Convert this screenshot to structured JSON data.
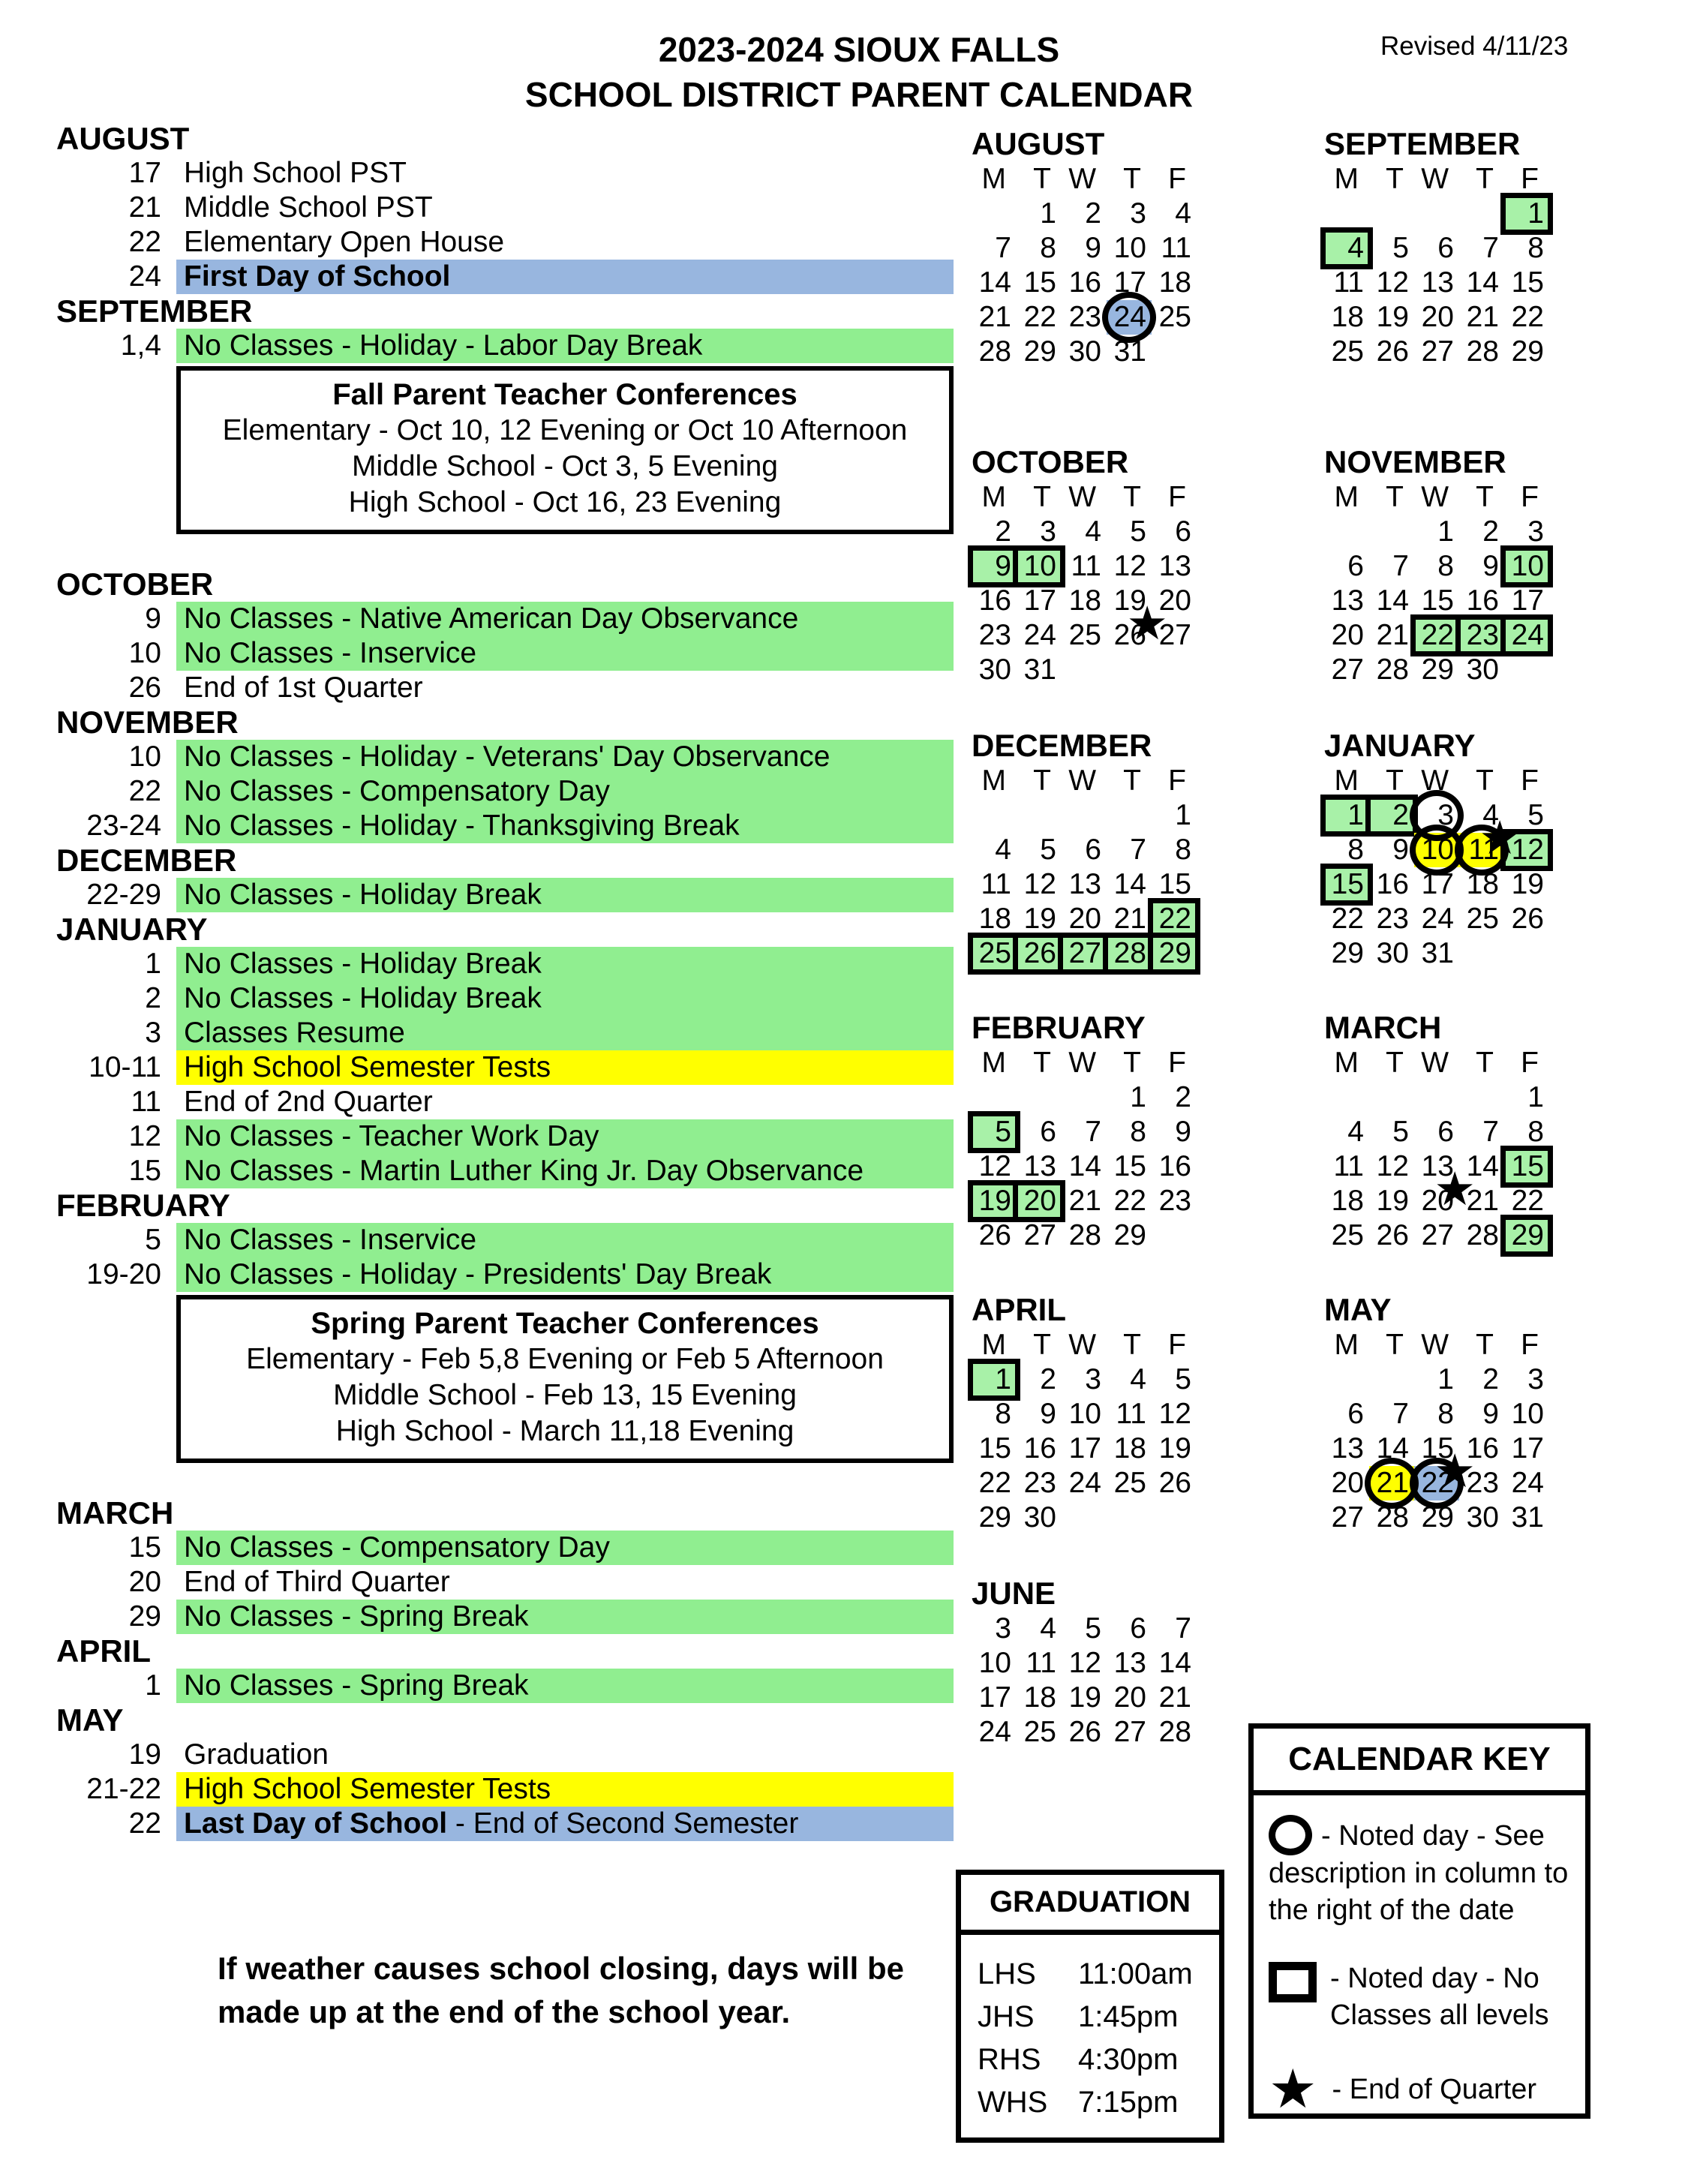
{
  "header": {
    "title_line1": "2023-2024 SIOUX FALLS",
    "title_line2": "SCHOOL DISTRICT PARENT CALENDAR",
    "revised": "Revised 4/11/23"
  },
  "colors": {
    "green": "#90ee90",
    "green_light": "#a8f1a8",
    "yellow": "#ffff00",
    "blue": "#98b6df"
  },
  "events": {
    "sections": [
      {
        "month": "AUGUST",
        "rows": [
          {
            "date": "17",
            "text": "High School PST"
          },
          {
            "date": "21",
            "text": "Middle School PST"
          },
          {
            "date": "22",
            "text": "Elementary Open House"
          },
          {
            "date": "24",
            "text": "First Day of School",
            "bold": true,
            "hl": "blue"
          }
        ]
      },
      {
        "month": "SEPTEMBER",
        "rows": [
          {
            "date": "1,4",
            "text": "No Classes - Holiday - Labor Day Break",
            "hl": "green"
          }
        ],
        "box": {
          "title": "Fall Parent Teacher Conferences",
          "lines": [
            "Elementary - Oct 10, 12 Evening or Oct 10 Afternoon",
            "Middle School - Oct 3, 5 Evening",
            "High School - Oct 16, 23 Evening"
          ]
        }
      },
      {
        "month": "OCTOBER",
        "rows": [
          {
            "date": "9",
            "text": "No Classes - Native American Day Observance",
            "hl": "green"
          },
          {
            "date": "10",
            "text": "No Classes - Inservice",
            "hl": "green"
          },
          {
            "date": "26",
            "text": "End of 1st Quarter"
          }
        ]
      },
      {
        "month": "NOVEMBER",
        "rows": [
          {
            "date": "10",
            "text": "No Classes - Holiday - Veterans' Day Observance",
            "hl": "green"
          },
          {
            "date": "22",
            "text": "No Classes - Compensatory Day",
            "hl": "green"
          },
          {
            "date": "23-24",
            "text": "No Classes - Holiday - Thanksgiving Break",
            "hl": "green"
          }
        ]
      },
      {
        "month": "DECEMBER",
        "rows": [
          {
            "date": "22-29",
            "text": "No Classes - Holiday Break",
            "hl": "green"
          }
        ]
      },
      {
        "month": "JANUARY",
        "rows": [
          {
            "date": "1",
            "text": "No Classes - Holiday Break",
            "hl": "green"
          },
          {
            "date": "2",
            "text": "No Classes - Holiday Break",
            "hl": "green"
          },
          {
            "date": "3",
            "text": "Classes Resume",
            "hl": "green"
          },
          {
            "date": "10-11",
            "text": "High School Semester Tests",
            "hl": "yellow"
          },
          {
            "date": "11",
            "text": "End of 2nd Quarter"
          },
          {
            "date": "12",
            "text": "No Classes - Teacher Work Day",
            "hl": "green"
          },
          {
            "date": "15",
            "text": "No Classes - Martin Luther King Jr. Day Observance",
            "hl": "green"
          }
        ]
      },
      {
        "month": "FEBRUARY",
        "rows": [
          {
            "date": "5",
            "text": "No Classes - Inservice",
            "hl": "green"
          },
          {
            "date": "19-20",
            "text": "No Classes - Holiday - Presidents' Day Break",
            "hl": "green"
          }
        ],
        "box": {
          "title": "Spring Parent Teacher Conferences",
          "lines": [
            "Elementary - Feb 5,8 Evening or Feb 5 Afternoon",
            "Middle School - Feb 13, 15 Evening",
            "High School - March 11,18 Evening"
          ]
        }
      },
      {
        "month": "MARCH",
        "rows": [
          {
            "date": "15",
            "text": "No Classes - Compensatory Day",
            "hl": "green"
          },
          {
            "date": "20",
            "text": "End of Third Quarter"
          },
          {
            "date": "29",
            "text": "No Classes - Spring Break",
            "hl": "green"
          }
        ]
      },
      {
        "month": "APRIL",
        "rows": [
          {
            "date": "1",
            "text": "No Classes - Spring Break",
            "hl": "green"
          }
        ]
      },
      {
        "month": "MAY",
        "rows": [
          {
            "date": "19",
            "text": "Graduation"
          },
          {
            "date": "21-22",
            "text": "High School Semester Tests",
            "hl": "yellow"
          },
          {
            "date": "22",
            "text": "Last Day of School",
            "bold": true,
            "suffix": " - End of Second Semester",
            "hl": "blue"
          }
        ]
      }
    ]
  },
  "mini_calendars": {
    "weekday_header": [
      "M",
      "T",
      "W",
      "T",
      "F"
    ],
    "months": [
      {
        "name": "AUGUST",
        "weeks": [
          [
            "",
            "1",
            "2",
            "3",
            "4"
          ],
          [
            "7",
            "8",
            "9",
            "10",
            "11"
          ],
          [
            "14",
            "15",
            "16",
            "17",
            "18"
          ],
          [
            "21",
            "22",
            "23",
            "24",
            "25"
          ],
          [
            "28",
            "29",
            "30",
            "31",
            ""
          ]
        ],
        "marks": {
          "24": [
            "blue",
            "ring"
          ]
        }
      },
      {
        "name": "SEPTEMBER",
        "weeks": [
          [
            "",
            "",
            "",
            "",
            "1"
          ],
          [
            "4",
            "5",
            "6",
            "7",
            "8"
          ],
          [
            "11",
            "12",
            "13",
            "14",
            "15"
          ],
          [
            "18",
            "19",
            "20",
            "21",
            "22"
          ],
          [
            "25",
            "26",
            "27",
            "28",
            "29"
          ]
        ],
        "marks": {
          "1": [
            "box",
            "green"
          ],
          "4": [
            "box",
            "green"
          ]
        }
      },
      {
        "name": "OCTOBER",
        "weeks": [
          [
            "2",
            "3",
            "4",
            "5",
            "6"
          ],
          [
            "9",
            "10",
            "11",
            "12",
            "13"
          ],
          [
            "16",
            "17",
            "18",
            "19",
            "20"
          ],
          [
            "23",
            "24",
            "25",
            "26",
            "27"
          ],
          [
            "30",
            "31",
            "",
            "",
            ""
          ]
        ],
        "marks": {
          "9": [
            "box",
            "green"
          ],
          "10": [
            "box",
            "green"
          ],
          "26": [
            "star"
          ]
        }
      },
      {
        "name": "NOVEMBER",
        "weeks": [
          [
            "",
            "",
            "1",
            "2",
            "3"
          ],
          [
            "6",
            "7",
            "8",
            "9",
            "10"
          ],
          [
            "13",
            "14",
            "15",
            "16",
            "17"
          ],
          [
            "20",
            "21",
            "22",
            "23",
            "24"
          ],
          [
            "27",
            "28",
            "29",
            "30",
            ""
          ]
        ],
        "marks": {
          "10": [
            "box",
            "green"
          ],
          "22": [
            "box",
            "green"
          ],
          "23": [
            "box",
            "green"
          ],
          "24": [
            "box",
            "green"
          ]
        }
      },
      {
        "name": "DECEMBER",
        "weeks": [
          [
            "",
            "",
            "",
            "",
            "1"
          ],
          [
            "4",
            "5",
            "6",
            "7",
            "8"
          ],
          [
            "11",
            "12",
            "13",
            "14",
            "15"
          ],
          [
            "18",
            "19",
            "20",
            "21",
            "22"
          ],
          [
            "25",
            "26",
            "27",
            "28",
            "29"
          ]
        ],
        "marks": {
          "22": [
            "box",
            "green"
          ],
          "25": [
            "box",
            "green"
          ],
          "26": [
            "box",
            "green"
          ],
          "27": [
            "box",
            "green"
          ],
          "28": [
            "box",
            "green"
          ],
          "29": [
            "box",
            "green"
          ]
        }
      },
      {
        "name": "JANUARY",
        "weeks": [
          [
            "1",
            "2",
            "3",
            "4",
            "5"
          ],
          [
            "8",
            "9",
            "10",
            "11",
            "12"
          ],
          [
            "15",
            "16",
            "17",
            "18",
            "19"
          ],
          [
            "22",
            "23",
            "24",
            "25",
            "26"
          ],
          [
            "29",
            "30",
            "31",
            "",
            ""
          ]
        ],
        "marks": {
          "1": [
            "box",
            "green"
          ],
          "2": [
            "box",
            "green"
          ],
          "3": [
            "ring"
          ],
          "10": [
            "yellow",
            "ring"
          ],
          "11": [
            "yellow",
            "ring",
            "star"
          ],
          "12": [
            "box",
            "green"
          ],
          "15": [
            "box",
            "green"
          ]
        }
      },
      {
        "name": "FEBRUARY",
        "weeks": [
          [
            "",
            "",
            "",
            "1",
            "2"
          ],
          [
            "5",
            "6",
            "7",
            "8",
            "9"
          ],
          [
            "12",
            "13",
            "14",
            "15",
            "16"
          ],
          [
            "19",
            "20",
            "21",
            "22",
            "23"
          ],
          [
            "26",
            "27",
            "28",
            "29",
            ""
          ]
        ],
        "marks": {
          "5": [
            "box",
            "green"
          ],
          "19": [
            "box",
            "green"
          ],
          "20": [
            "box",
            "green"
          ]
        }
      },
      {
        "name": "MARCH",
        "weeks": [
          [
            "",
            "",
            "",
            "",
            "1"
          ],
          [
            "4",
            "5",
            "6",
            "7",
            "8"
          ],
          [
            "11",
            "12",
            "13",
            "14",
            "15"
          ],
          [
            "18",
            "19",
            "20",
            "21",
            "22"
          ],
          [
            "25",
            "26",
            "27",
            "28",
            "29"
          ]
        ],
        "marks": {
          "15": [
            "box",
            "green"
          ],
          "20": [
            "star"
          ],
          "29": [
            "box",
            "green"
          ]
        }
      },
      {
        "name": "APRIL",
        "weeks": [
          [
            "1",
            "2",
            "3",
            "4",
            "5"
          ],
          [
            "8",
            "9",
            "10",
            "11",
            "12"
          ],
          [
            "15",
            "16",
            "17",
            "18",
            "19"
          ],
          [
            "22",
            "23",
            "24",
            "25",
            "26"
          ],
          [
            "29",
            "30",
            "",
            "",
            ""
          ]
        ],
        "marks": {
          "1": [
            "box",
            "green"
          ]
        }
      },
      {
        "name": "MAY",
        "weeks": [
          [
            "",
            "",
            "1",
            "2",
            "3"
          ],
          [
            "6",
            "7",
            "8",
            "9",
            "10"
          ],
          [
            "13",
            "14",
            "15",
            "16",
            "17"
          ],
          [
            "20",
            "21",
            "22",
            "23",
            "24"
          ],
          [
            "27",
            "28",
            "29",
            "30",
            "31"
          ]
        ],
        "marks": {
          "21": [
            "yellow",
            "ring"
          ],
          "22": [
            "blue",
            "ring",
            "star"
          ]
        }
      },
      {
        "name": "JUNE",
        "show_header": false,
        "weeks": [
          [
            "3",
            "4",
            "5",
            "6",
            "7"
          ],
          [
            "10",
            "11",
            "12",
            "13",
            "14"
          ],
          [
            "17",
            "18",
            "19",
            "20",
            "21"
          ],
          [
            "24",
            "25",
            "26",
            "27",
            "28"
          ]
        ],
        "marks": {}
      }
    ]
  },
  "graduation": {
    "title": "GRADUATION",
    "rows": [
      {
        "school": "LHS",
        "time": "11:00am"
      },
      {
        "school": "JHS",
        "time": "1:45pm"
      },
      {
        "school": "RHS",
        "time": "4:30pm"
      },
      {
        "school": "WHS",
        "time": "7:15pm"
      }
    ]
  },
  "calendar_key": {
    "title": "CALENDAR KEY",
    "circle_label": "- Noted day - See description in column to the right of the date",
    "square_label": "- Noted day - No Classes all levels",
    "star_label": "- End of Quarter"
  },
  "weather_note": {
    "line1": "If weather causes school closing, days will be",
    "line2": "made up at the end of the school year."
  }
}
